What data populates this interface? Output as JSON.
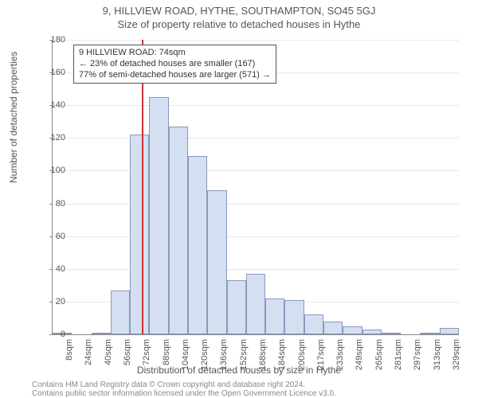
{
  "titles": {
    "line1": "9, HILLVIEW ROAD, HYTHE, SOUTHAMPTON, SO45 5GJ",
    "line2": "Size of property relative to detached houses in Hythe"
  },
  "ylabel": "Number of detached properties",
  "xlabel": "Distribution of detached houses by size in Hythe",
  "footer": {
    "line1": "Contains HM Land Registry data © Crown copyright and database right 2024.",
    "line2": "Contains public sector information licensed under the Open Government Licence v3.0."
  },
  "chart": {
    "type": "histogram",
    "ylim": [
      0,
      180
    ],
    "ytick_step": 20,
    "bar_fill": "#d4dff2",
    "bar_border": "#8899bb",
    "grid_color": "#e8e8e8",
    "axis_color": "#888888",
    "marker_color": "#cc3333",
    "background_color": "#ffffff",
    "marker_x_value": 74,
    "x_categories": [
      "8sqm",
      "24sqm",
      "40sqm",
      "56sqm",
      "72sqm",
      "88sqm",
      "104sqm",
      "120sqm",
      "136sqm",
      "152sqm",
      "168sqm",
      "184sqm",
      "200sqm",
      "217sqm",
      "233sqm",
      "249sqm",
      "265sqm",
      "281sqm",
      "297sqm",
      "313sqm",
      "329sqm"
    ],
    "values": [
      1,
      0,
      1,
      27,
      122,
      145,
      127,
      109,
      88,
      33,
      37,
      22,
      21,
      12,
      8,
      5,
      3,
      1,
      0,
      1,
      4
    ],
    "annotation": {
      "line1": "9 HILLVIEW ROAD: 74sqm",
      "line2": "← 23% of detached houses are smaller (167)",
      "line3": "77% of semi-detached houses are larger (571) →"
    }
  }
}
